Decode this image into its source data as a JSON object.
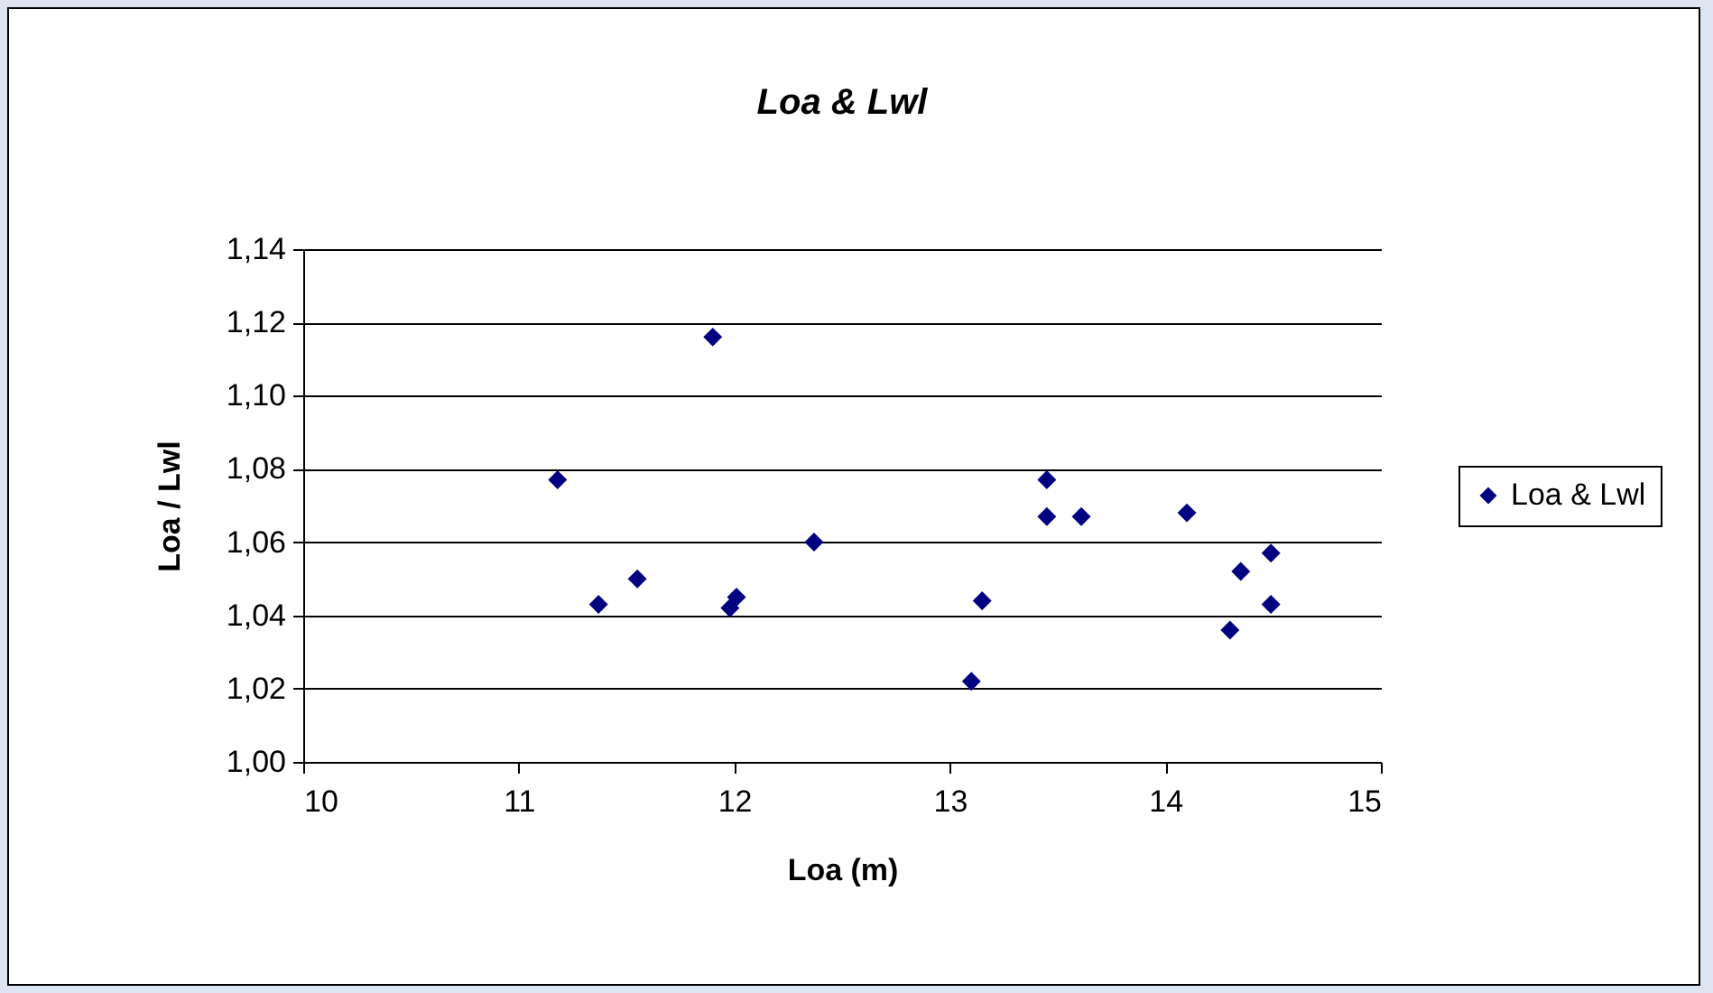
{
  "chart_data": {
    "type": "scatter",
    "title": "Loa & Lwl",
    "xlabel": "Loa (m)",
    "ylabel": "Loa / Lwl",
    "xlim": [
      10,
      15
    ],
    "xticks": [
      10,
      11,
      12,
      13,
      14,
      15
    ],
    "ylim": [
      1.0,
      1.14
    ],
    "yticks": [
      {
        "value": 1.0,
        "label": "1,00"
      },
      {
        "value": 1.02,
        "label": "1,02"
      },
      {
        "value": 1.04,
        "label": "1,04"
      },
      {
        "value": 1.06,
        "label": "1,06"
      },
      {
        "value": 1.08,
        "label": "1,08"
      },
      {
        "value": 1.1,
        "label": "1,10"
      },
      {
        "value": 1.12,
        "label": "1,12"
      },
      {
        "value": 1.14,
        "label": "1,14"
      }
    ],
    "grid": "y",
    "legend": "right",
    "marker": "diamond",
    "series": [
      {
        "name": "Loa & Lwl",
        "color": "#000080",
        "x": [
          11.18,
          11.37,
          11.55,
          11.9,
          11.98,
          12.01,
          12.37,
          13.1,
          13.15,
          13.45,
          13.45,
          13.61,
          14.1,
          14.3,
          14.35,
          14.49,
          14.49
        ],
        "values": [
          1.077,
          1.043,
          1.05,
          1.116,
          1.042,
          1.045,
          1.06,
          1.022,
          1.044,
          1.077,
          1.067,
          1.067,
          1.068,
          1.036,
          1.052,
          1.057,
          1.043
        ]
      }
    ]
  }
}
